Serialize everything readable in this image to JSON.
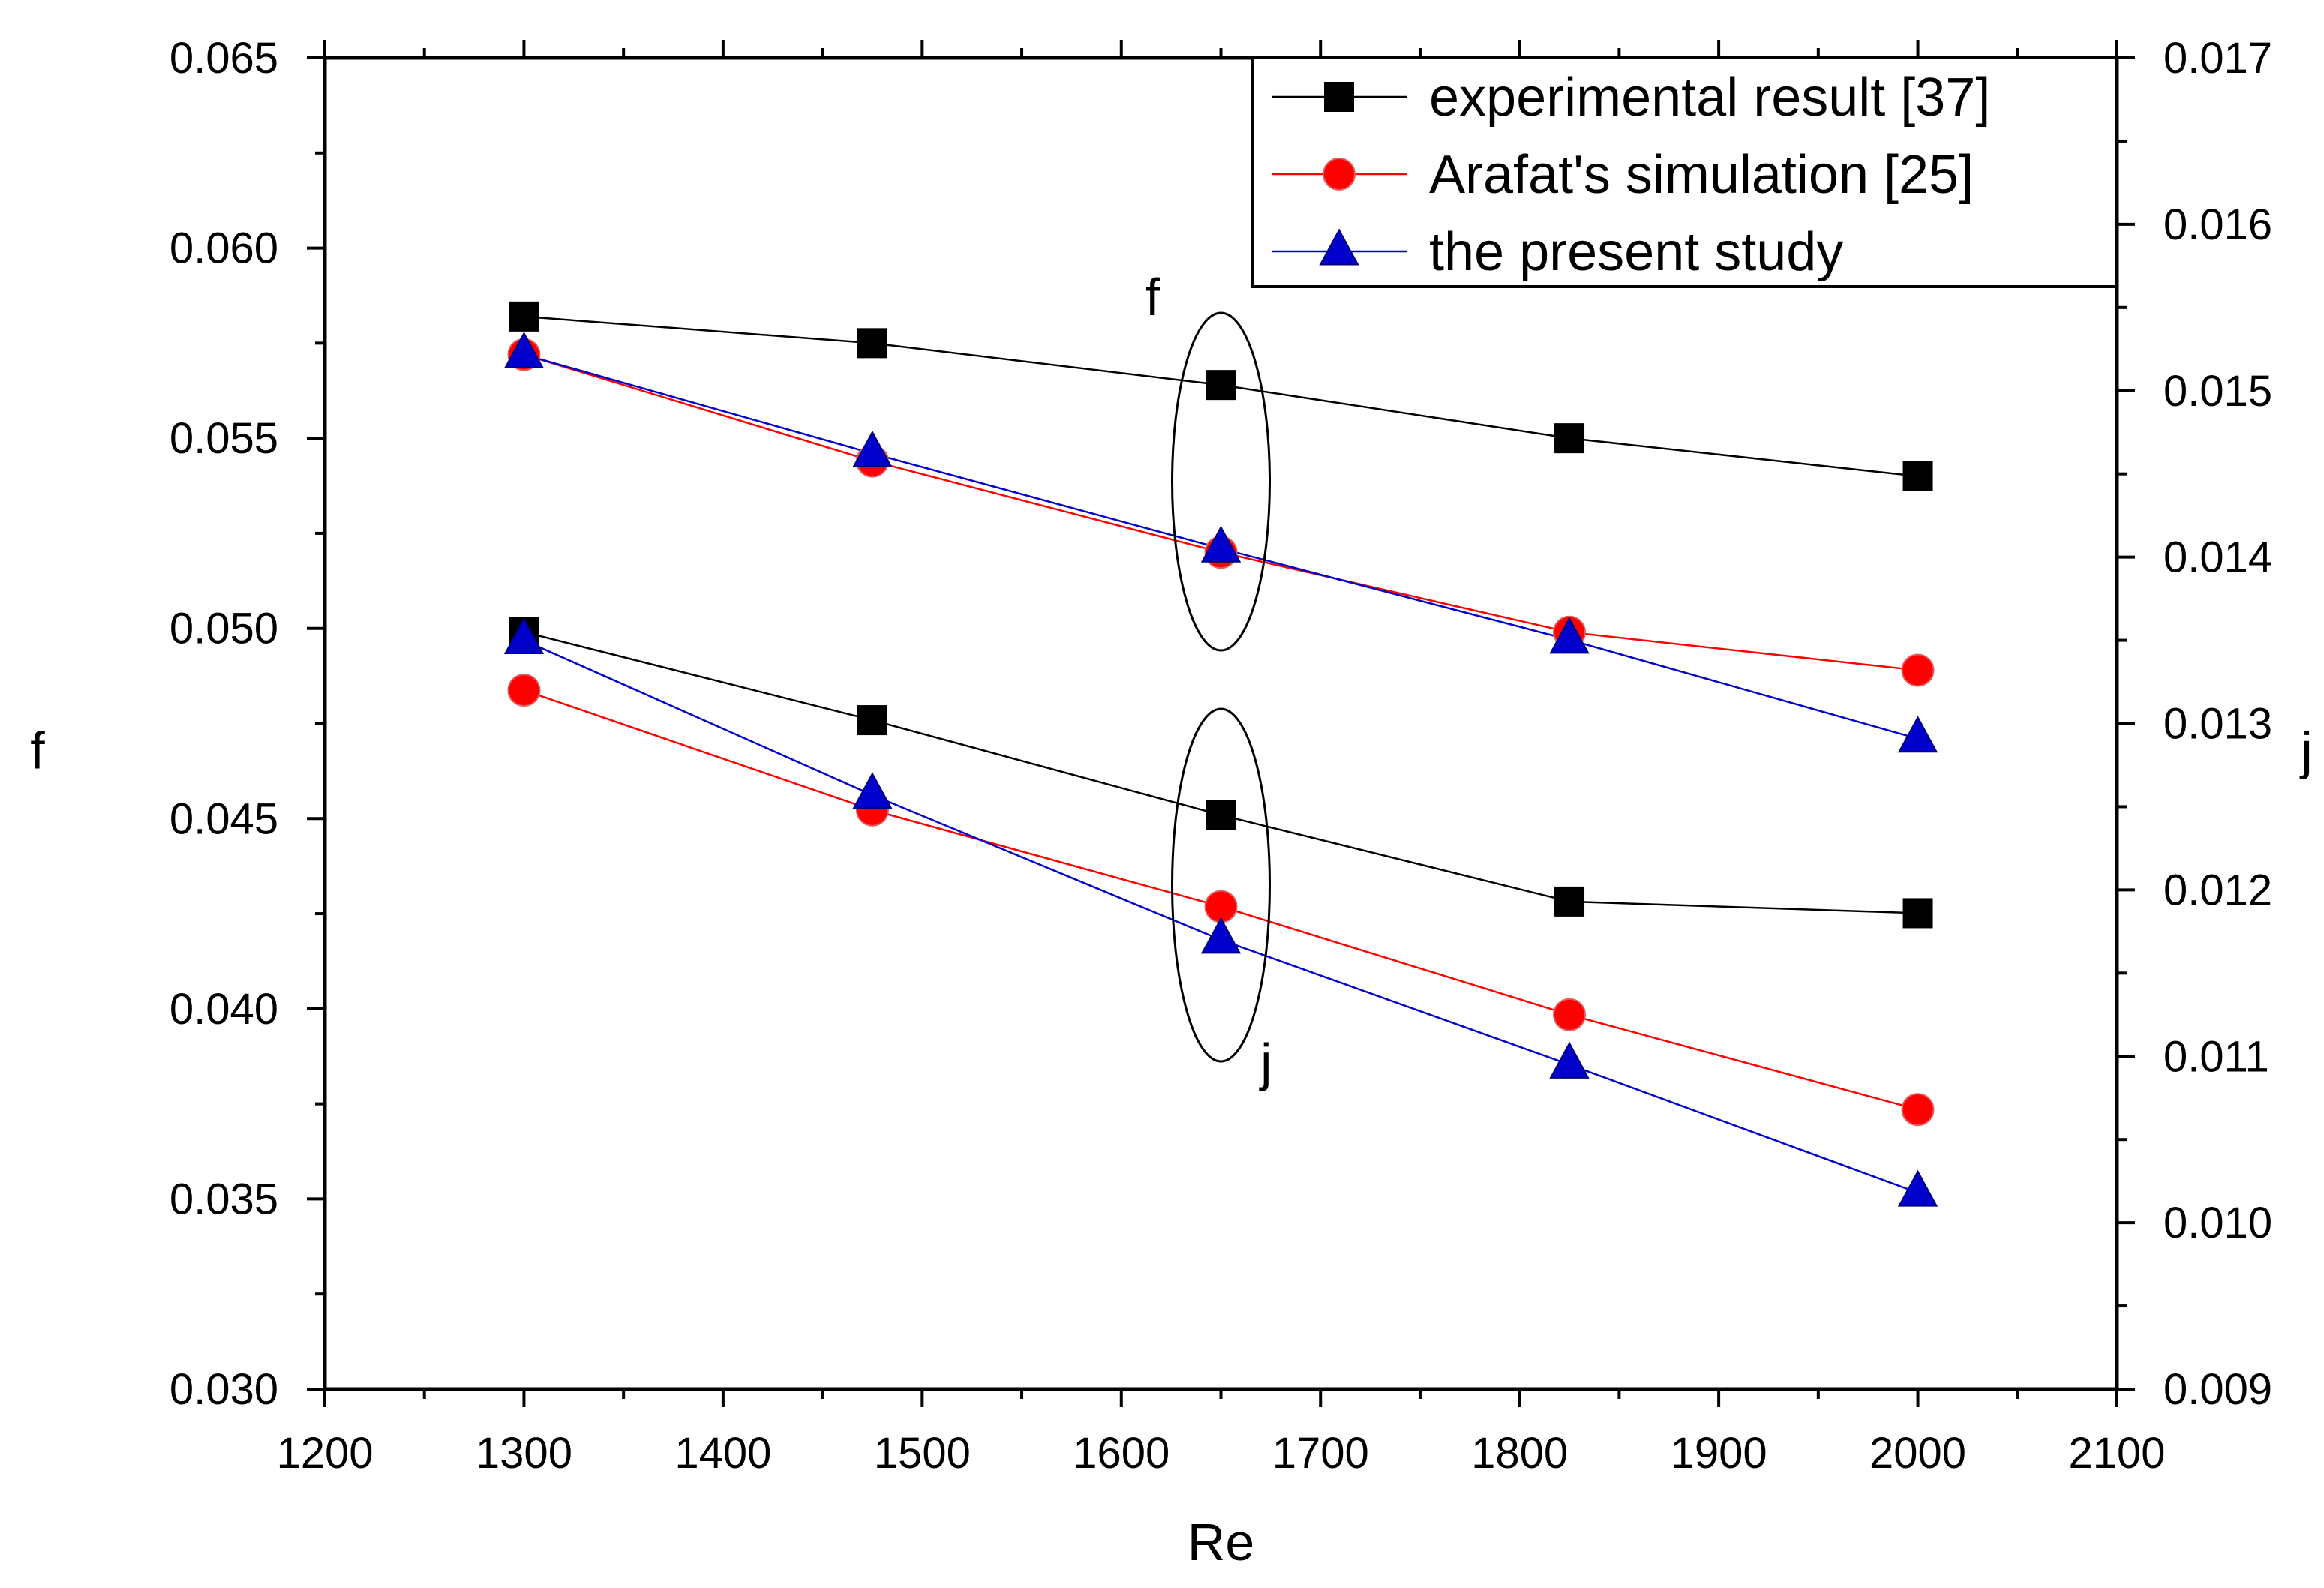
{
  "chart_data": {
    "type": "line",
    "title": "",
    "xlabel": "Re",
    "ylabel": "f",
    "y2label": "j",
    "xlim": [
      1200,
      2100
    ],
    "ylim": [
      0.03,
      0.065
    ],
    "y2lim": [
      0.009,
      0.017
    ],
    "xticks": [
      1200,
      1300,
      1400,
      1500,
      1600,
      1700,
      1800,
      1900,
      2000,
      2100
    ],
    "xtick_labels": [
      "1200",
      "1300",
      "1400",
      "1500",
      "1600",
      "1700",
      "1800",
      "1900",
      "2000",
      "2100"
    ],
    "yticks": [
      0.03,
      0.035,
      0.04,
      0.045,
      0.05,
      0.055,
      0.06,
      0.065
    ],
    "ytick_labels": [
      "0.030",
      "0.035",
      "0.040",
      "0.045",
      "0.050",
      "0.055",
      "0.060",
      "0.065"
    ],
    "y2ticks": [
      0.009,
      0.01,
      0.011,
      0.012,
      0.013,
      0.014,
      0.015,
      0.016,
      0.017
    ],
    "y2tick_labels": [
      "0.009",
      "0.010",
      "0.011",
      "0.012",
      "0.013",
      "0.014",
      "0.015",
      "0.016",
      "0.017"
    ],
    "grid": false,
    "legend_position": "top-right",
    "x": [
      1300,
      1475,
      1650,
      1825,
      2000
    ],
    "series": [
      {
        "name": "experimental result [37]",
        "group": "f",
        "axis": "left",
        "marker": "square",
        "color": "#000000",
        "values": [
          0.0582,
          0.0575,
          0.0564,
          0.055,
          0.054
        ]
      },
      {
        "name": "Arafat's simulation [25]",
        "group": "f",
        "axis": "left",
        "marker": "circle",
        "color": "#ff0000",
        "values": [
          0.0572,
          0.0544,
          0.052,
          0.0499,
          0.0489
        ]
      },
      {
        "name": "the present study",
        "group": "f",
        "axis": "left",
        "marker": "triangle",
        "color": "#0000cc",
        "values": [
          0.0572,
          0.0546,
          0.0521,
          0.0497,
          0.0471
        ]
      },
      {
        "name": "experimental result [37]",
        "group": "j",
        "axis": "right",
        "marker": "square",
        "color": "#000000",
        "values": [
          0.01355,
          0.01302,
          0.01245,
          0.01193,
          0.01186
        ]
      },
      {
        "name": "Arafat's simulation [25]",
        "group": "j",
        "axis": "right",
        "marker": "circle",
        "color": "#ff0000",
        "values": [
          0.0132,
          0.01248,
          0.0119,
          0.01125,
          0.01068
        ]
      },
      {
        "name": "the present study",
        "group": "j",
        "axis": "right",
        "marker": "triangle",
        "color": "#0000cc",
        "values": [
          0.0135,
          0.01257,
          0.0117,
          0.01095,
          0.01018
        ]
      }
    ],
    "legend": [
      {
        "label": "experimental result [37]",
        "marker": "square",
        "color": "#000000"
      },
      {
        "label": "Arafat's simulation [25]",
        "marker": "circle",
        "color": "#ff0000"
      },
      {
        "label": "the present study",
        "marker": "triangle",
        "color": "#0000cc"
      }
    ],
    "annotations": {
      "f_group_label": "f",
      "j_group_label": "j"
    },
    "colors": {
      "line_black": "#000000",
      "line_red": "#ff0000",
      "line_blue": "#0000cc",
      "marker_blue": "#0000cc",
      "marker_blue_edge": "#000080",
      "marker_red": "#ff0000"
    }
  }
}
